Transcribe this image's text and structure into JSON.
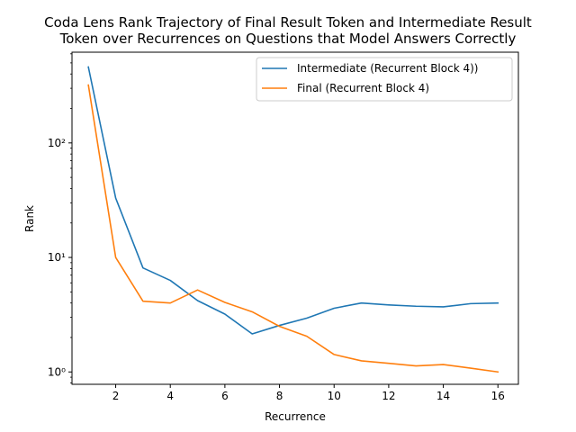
{
  "chart_data": {
    "type": "line",
    "title_lines": [
      "Coda Lens Rank Trajectory of Final Result Token and Intermediate Result",
      "Token over Recurrences on Questions that Model Answers Correctly"
    ],
    "xlabel": "Recurrence",
    "ylabel": "Rank",
    "yscale": "log",
    "xlim": [
      0.4,
      16.75
    ],
    "ylim": [
      0.78,
      620
    ],
    "x_ticks": [
      2,
      4,
      6,
      8,
      10,
      12,
      14,
      16
    ],
    "y_ticks": [
      1,
      10,
      100
    ],
    "y_tick_labels": [
      "10⁰",
      "10¹",
      "10²"
    ],
    "grid": false,
    "legend_position": "top-right",
    "x": [
      1,
      2,
      3,
      4,
      5,
      6,
      7,
      8,
      9,
      10,
      11,
      12,
      13,
      14,
      15,
      16
    ],
    "series": [
      {
        "name": "Intermediate (Recurrent Block 4))",
        "color": "#1f77b4",
        "values": [
          460,
          33,
          8.1,
          6.3,
          4.2,
          3.2,
          2.15,
          2.55,
          2.95,
          3.6,
          4.0,
          3.85,
          3.75,
          3.7,
          3.95,
          4.0
        ]
      },
      {
        "name": "Final (Recurrent Block 4)",
        "color": "#ff7f0e",
        "values": [
          320,
          10.0,
          4.15,
          4.0,
          5.2,
          4.05,
          3.35,
          2.5,
          2.05,
          1.42,
          1.25,
          1.19,
          1.13,
          1.16,
          1.08,
          1.0
        ]
      }
    ]
  }
}
